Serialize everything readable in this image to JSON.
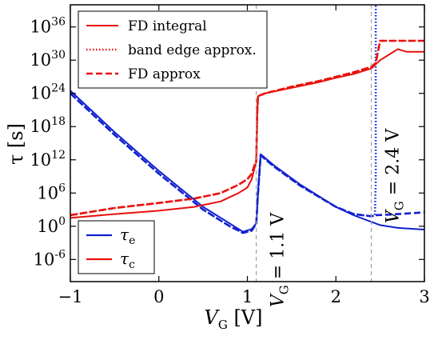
{
  "chart_data": {
    "type": "line",
    "xlabel": "V_G [V]",
    "xlabel_main": "V",
    "xlabel_sub": "G",
    "xlabel_unit": " [V]",
    "ylabel": "τ [s]",
    "xlim": [
      -1,
      3
    ],
    "y_log10_lim": [
      -10,
      40
    ],
    "y_scale": "log",
    "x_ticks": [
      {
        "value": -1,
        "label": "−1"
      },
      {
        "value": 0,
        "label": "0"
      },
      {
        "value": 1,
        "label": "1"
      },
      {
        "value": 2,
        "label": "2"
      },
      {
        "value": 3,
        "label": "3"
      }
    ],
    "y_ticks": [
      {
        "exp": 36,
        "base": "10",
        "sup": "36"
      },
      {
        "exp": 30,
        "base": "10",
        "sup": "30"
      },
      {
        "exp": 24,
        "base": "10",
        "sup": "24"
      },
      {
        "exp": 18,
        "base": "10",
        "sup": "18"
      },
      {
        "exp": 12,
        "base": "10",
        "sup": "12"
      },
      {
        "exp": 6,
        "base": "10",
        "sup": "6"
      },
      {
        "exp": 0,
        "base": "10",
        "sup": "0"
      },
      {
        "exp": -6,
        "base": "10",
        "sup": "-6"
      }
    ],
    "legend_styles": {
      "position": "top-left",
      "entries": [
        {
          "label": "FD integral",
          "style": "solid",
          "color": "#e8110d"
        },
        {
          "label": "band edge approx.",
          "style": "dotted",
          "color": "#e8110d"
        },
        {
          "label": "FD approx",
          "style": "dashed",
          "color": "#e8110d"
        }
      ]
    },
    "legend_carriers": {
      "position": "bottom-left",
      "entries": [
        {
          "label": "τ",
          "sub": "e",
          "color": "#1020d0"
        },
        {
          "label": "τ",
          "sub": "c",
          "color": "#e8110d"
        }
      ]
    },
    "annotations": [
      {
        "x": 1.1,
        "text": "V",
        "sub": "G",
        "rest": " = 1.1 V"
      },
      {
        "x": 2.4,
        "text": "V",
        "sub": "G",
        "rest": " = 2.4 V"
      }
    ],
    "vlines": [
      1.1,
      2.4
    ],
    "series": [
      {
        "name": "τe FD integral",
        "carrier": "e",
        "method": "FD integral",
        "color": "#1020d0",
        "style": "solid",
        "x": [
          -1.0,
          -0.5,
          0.0,
          0.5,
          0.8,
          0.95,
          1.05,
          1.1,
          1.12,
          1.15,
          1.3,
          1.6,
          2.0,
          2.2,
          2.4,
          2.5,
          2.7,
          3.0
        ],
        "y_log10": [
          24.5,
          17.0,
          10.0,
          3.5,
          0.5,
          -1.0,
          -0.5,
          0.5,
          6.0,
          13.0,
          11.0,
          7.5,
          3.5,
          2.0,
          0.8,
          0.2,
          -0.3,
          -0.6
        ]
      },
      {
        "name": "τe band edge approx.",
        "carrier": "e",
        "method": "band edge approx.",
        "color": "#1020d0",
        "style": "dotted",
        "x": [
          -1.0,
          -0.5,
          0.0,
          0.5,
          0.8,
          0.95,
          1.05,
          1.1,
          1.12,
          1.15,
          1.3,
          1.6,
          2.0,
          2.2,
          2.4,
          2.44,
          2.45,
          2.45
        ],
        "y_log10": [
          24.0,
          16.5,
          9.5,
          3.0,
          0.0,
          -1.2,
          -0.8,
          0.5,
          6.0,
          12.8,
          10.8,
          7.3,
          3.5,
          2.2,
          1.8,
          1.9,
          8.0,
          40.0
        ]
      },
      {
        "name": "τe FD approx",
        "carrier": "e",
        "method": "FD approx",
        "color": "#1020d0",
        "style": "dashed",
        "x": [
          -1.0,
          -0.5,
          0.0,
          0.5,
          0.8,
          0.95,
          1.05,
          1.1,
          1.12,
          1.15,
          1.3,
          1.6,
          2.0,
          2.2,
          2.4,
          2.44,
          2.6,
          3.0
        ],
        "y_log10": [
          24.0,
          16.5,
          9.5,
          3.0,
          0.0,
          -1.2,
          -0.8,
          0.5,
          6.0,
          12.8,
          10.8,
          7.3,
          3.5,
          2.2,
          1.8,
          2.0,
          2.1,
          2.5
        ]
      },
      {
        "name": "τc FD integral",
        "carrier": "c",
        "method": "FD integral",
        "color": "#e8110d",
        "style": "solid",
        "x": [
          -1.0,
          -0.5,
          0.0,
          0.4,
          0.7,
          0.9,
          1.0,
          1.05,
          1.08,
          1.1,
          1.11,
          1.12,
          1.2,
          1.5,
          1.8,
          2.0,
          2.2,
          2.4,
          2.5,
          2.7,
          2.8,
          3.0
        ],
        "y_log10": [
          1.5,
          2.2,
          2.8,
          3.5,
          4.5,
          6.0,
          7.0,
          8.5,
          10.5,
          11.5,
          20.0,
          23.5,
          24.0,
          25.0,
          26.0,
          26.8,
          27.5,
          28.5,
          30.0,
          32.0,
          31.5,
          31.5
        ]
      },
      {
        "name": "τc band edge approx.",
        "carrier": "c",
        "method": "band edge approx.",
        "color": "#e8110d",
        "style": "dotted",
        "x": [
          -1.0,
          -0.5,
          0.0,
          0.4,
          0.7,
          0.9,
          1.0,
          1.05,
          1.08,
          1.1,
          1.11,
          1.12,
          1.2,
          1.5,
          1.8,
          2.0,
          2.2,
          2.4,
          2.45,
          2.5,
          3.0
        ],
        "y_log10": [
          2.0,
          3.3,
          4.2,
          5.0,
          6.0,
          7.5,
          8.5,
          9.5,
          11.0,
          11.8,
          20.0,
          23.5,
          24.0,
          25.2,
          26.2,
          27.0,
          27.8,
          28.8,
          29.5,
          33.5,
          33.5
        ]
      },
      {
        "name": "τc FD approx",
        "carrier": "c",
        "method": "FD approx",
        "color": "#e8110d",
        "style": "dashed",
        "x": [
          -1.0,
          -0.5,
          0.0,
          0.4,
          0.7,
          0.9,
          1.0,
          1.05,
          1.08,
          1.1,
          1.11,
          1.12,
          1.2,
          1.5,
          1.8,
          2.0,
          2.2,
          2.4,
          2.45,
          2.5,
          3.0
        ],
        "y_log10": [
          2.0,
          3.3,
          4.2,
          5.0,
          6.0,
          7.5,
          8.5,
          9.5,
          11.0,
          11.8,
          20.0,
          23.5,
          24.0,
          25.2,
          26.2,
          27.0,
          27.8,
          28.8,
          29.5,
          33.5,
          33.5
        ]
      }
    ]
  }
}
